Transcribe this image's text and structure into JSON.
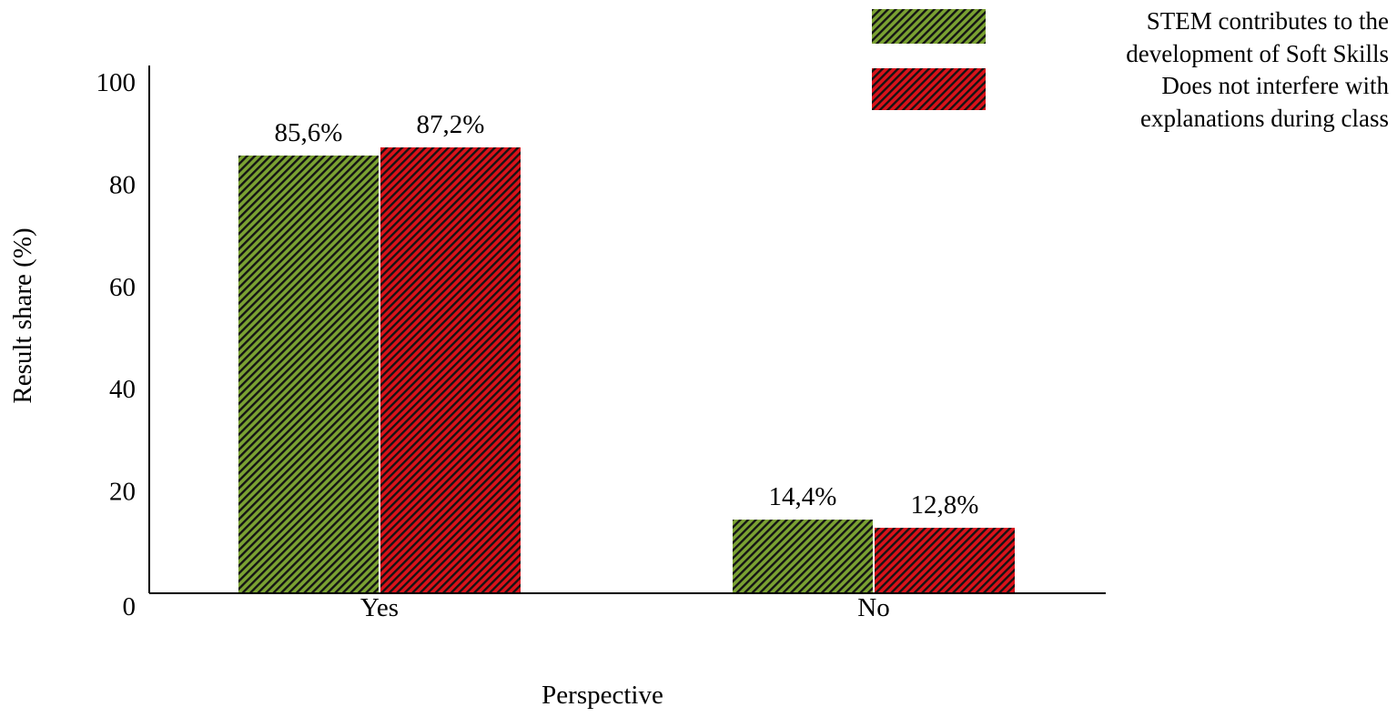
{
  "chart_data": {
    "type": "bar",
    "xlabel": "Perspective",
    "ylabel": "Result share (%)",
    "ylim": [
      0,
      100
    ],
    "yticks": [
      0,
      20,
      40,
      60,
      80,
      100
    ],
    "grid": false,
    "legend_position": "top-right",
    "categories": [
      "Yes",
      "No"
    ],
    "series": [
      {
        "name": "STEM contributes to the development of Soft Skills",
        "name_lines": [
          "STEM contributes to the",
          "development of Soft Skills"
        ],
        "color": "#7aa132",
        "values": [
          85.6,
          14.4
        ],
        "labels": [
          "85,6%",
          "14,4%"
        ]
      },
      {
        "name": "Does not interfere with explanations during class",
        "name_lines": [
          "Does not interfere with",
          "explanations during class"
        ],
        "color": "#d9121a",
        "values": [
          87.2,
          12.8
        ],
        "labels": [
          "87,2%",
          "12,8%"
        ]
      }
    ]
  }
}
